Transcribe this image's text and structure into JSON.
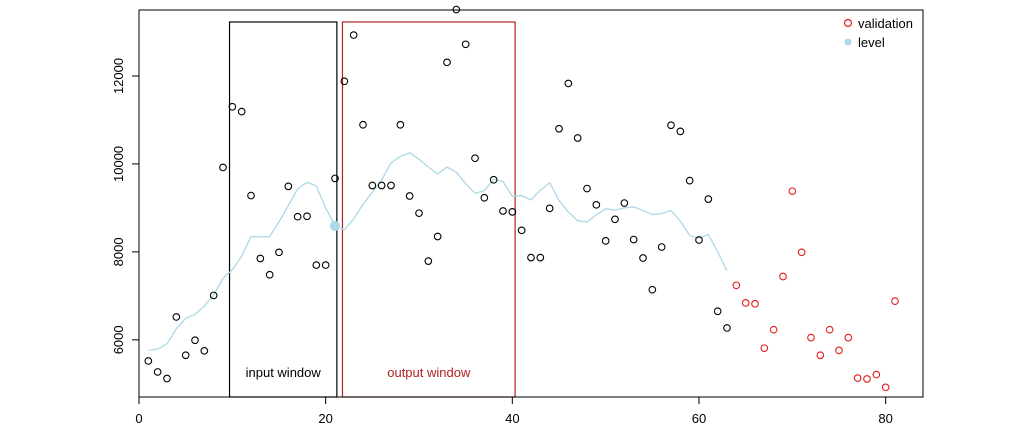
{
  "chart_data": {
    "type": "scatter",
    "xlim": [
      0,
      84
    ],
    "ylim": [
      4700,
      13500
    ],
    "x_ticks": [
      0,
      20,
      40,
      60,
      80
    ],
    "y_ticks": [
      6000,
      8000,
      10000,
      12000
    ],
    "grid": false,
    "legend_position": "top-right",
    "legend": [
      {
        "label": "validation",
        "color": "#e41a1c",
        "marker": "open-circle"
      },
      {
        "label": "level",
        "color": "#add8e6",
        "marker": "filled-circle"
      }
    ],
    "observed": {
      "color": "#000000",
      "x": [
        1,
        2,
        3,
        4,
        5,
        6,
        7,
        8,
        9,
        10,
        11,
        12,
        13,
        14,
        15,
        16,
        17,
        18,
        19,
        20,
        21,
        22,
        23,
        24,
        25,
        26,
        27,
        28,
        29,
        30,
        31,
        32,
        33,
        34,
        35,
        36,
        37,
        38,
        39,
        40,
        41,
        42,
        43,
        44,
        45,
        46,
        47,
        48,
        49,
        50,
        51,
        52,
        53,
        54,
        55,
        56,
        57,
        58,
        59,
        60,
        61,
        62,
        63
      ],
      "y": [
        5520,
        5270,
        5120,
        6520,
        5650,
        5990,
        5750,
        7010,
        9920,
        11300,
        11190,
        9280,
        7850,
        7480,
        7990,
        9490,
        8800,
        8810,
        7700,
        7700,
        9670,
        11880,
        12930,
        10890,
        9510,
        9510,
        9510,
        10890,
        9270,
        8880,
        7790,
        8350,
        12310,
        13510,
        12720,
        10130,
        9230,
        9640,
        8930,
        8910,
        8490,
        7870,
        7870,
        8990,
        10800,
        11830,
        10590,
        9440,
        9070,
        8250,
        8740,
        9110,
        8280,
        7860,
        7140,
        8110,
        10880,
        10740,
        9620,
        8270,
        9200,
        6650,
        6270
      ]
    },
    "validation": {
      "color": "#e41a1c",
      "x": [
        64,
        65,
        66,
        67,
        68,
        69,
        70,
        71,
        72,
        73,
        74,
        75,
        76,
        77,
        78,
        79,
        80,
        81
      ],
      "y": [
        7240,
        6840,
        6820,
        5810,
        6230,
        7440,
        9380,
        7990,
        6050,
        5650,
        6230,
        5760,
        6050,
        5130,
        5110,
        5210,
        4920,
        6880
      ]
    },
    "level": {
      "color": "#add8e6",
      "x": [
        1,
        2,
        3,
        4,
        5,
        6,
        7,
        8,
        9,
        10,
        11,
        12,
        13,
        14,
        15,
        16,
        17,
        18,
        19,
        20,
        21,
        22,
        23,
        24,
        25,
        26,
        27,
        28,
        29,
        30,
        31,
        32,
        33,
        34,
        35,
        36,
        37,
        38,
        39,
        40,
        41,
        42,
        43,
        44,
        45,
        46,
        47,
        48,
        49,
        50,
        51,
        52,
        53,
        54,
        55,
        56,
        57,
        58,
        59,
        60,
        61,
        62,
        63
      ],
      "y": [
        5760,
        5790,
        5910,
        6250,
        6490,
        6580,
        6770,
        7020,
        7400,
        7590,
        7900,
        8350,
        8340,
        8350,
        8680,
        9050,
        9430,
        9580,
        9500,
        8990,
        8610,
        8500,
        8750,
        9080,
        9360,
        9640,
        10020,
        10170,
        10250,
        10110,
        9930,
        9770,
        9930,
        9810,
        9550,
        9330,
        9390,
        9650,
        9600,
        9260,
        9280,
        9180,
        9400,
        9570,
        9170,
        8910,
        8710,
        8680,
        8840,
        8980,
        8950,
        9000,
        9020,
        8940,
        8850,
        8870,
        8940,
        8700,
        8370,
        8310,
        8400,
        8000,
        7570
      ]
    },
    "level_marker": {
      "x": 21,
      "y": 8590
    },
    "input_window": {
      "x_start": 9.7,
      "x_end": 21.2,
      "label": "input window",
      "color": "#000000"
    },
    "output_window": {
      "x_start": 21.8,
      "x_end": 40.3,
      "label": "output window",
      "color": "#b22222"
    }
  }
}
